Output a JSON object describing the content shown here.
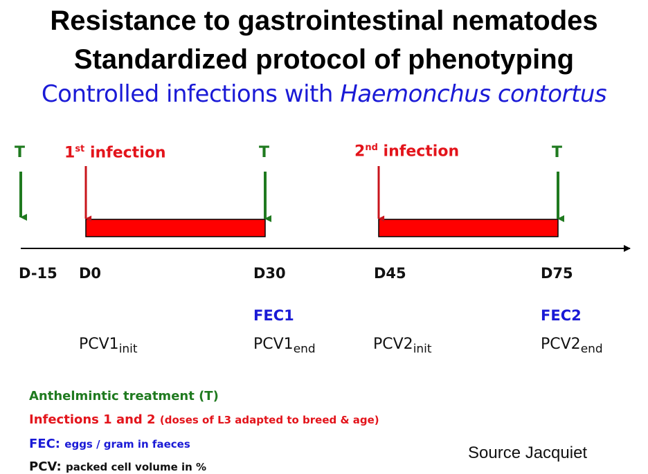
{
  "title_line1": "Resistance to gastrointestinal nematodes",
  "title_line2": "Standardized protocol of phenotyping",
  "subtitle": {
    "prefix": "Controlled infections with ",
    "species": "Haemonchus contortus"
  },
  "treatment_marker": "T",
  "infection1": {
    "ordinal": "1",
    "suffix": "st",
    "word": "infection"
  },
  "infection2": {
    "ordinal": "2",
    "suffix": "nd",
    "word": "infection"
  },
  "days": [
    "D-15",
    "D0",
    "D30",
    "D45",
    "D75"
  ],
  "fec_labels": [
    "FEC1",
    "FEC2"
  ],
  "pcv": [
    {
      "base": "PCV1",
      "sub": "init"
    },
    {
      "base": "PCV1",
      "sub": "end"
    },
    {
      "base": "PCV2",
      "sub": "init"
    },
    {
      "base": "PCV2",
      "sub": "end"
    }
  ],
  "legend": {
    "treatment": "Anthelmintic treatment (T)",
    "infections_main": "Infections 1 and 2",
    "infections_note": "(doses of L3 adapted to breed & age)",
    "fec_key": "FEC:",
    "fec_desc": "eggs / gram in faeces",
    "pcv_key": "PCV:",
    "pcv_desc": "packed cell volume in %"
  },
  "source": "Source  Jacquiet",
  "colors": {
    "green": "#1f7a1f",
    "red": "#e3141b",
    "blue": "#1a1ad6",
    "black": "#111111"
  }
}
